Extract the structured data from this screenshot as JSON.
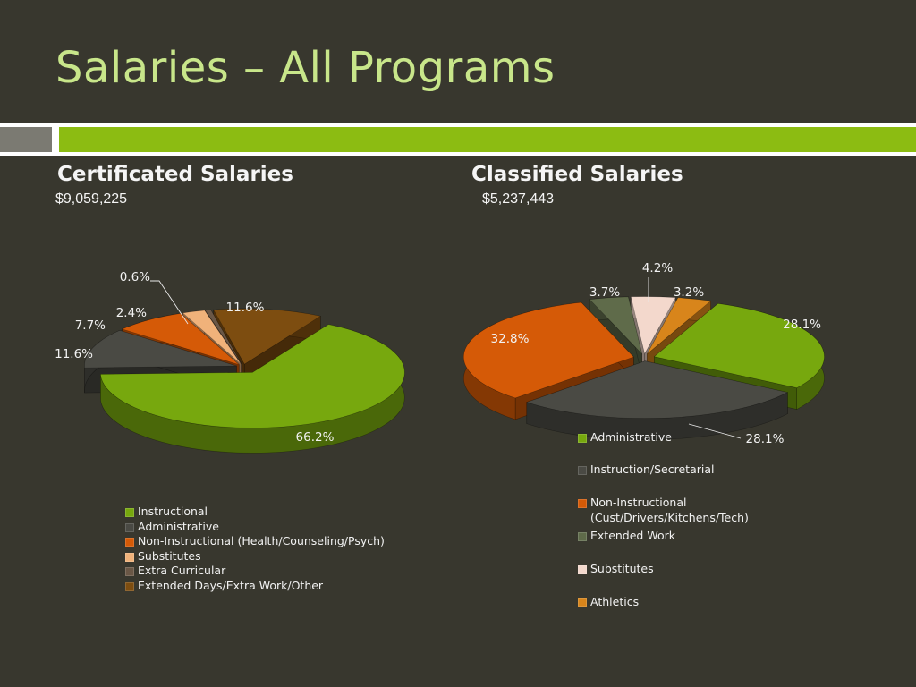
{
  "slide": {
    "title": "Salaries – All Programs"
  },
  "theme": {
    "background": "#38372e",
    "title_color": "#c8e68a",
    "bar_green": "#8cbc12",
    "bar_grey": "#7b7a72"
  },
  "chart_data": [
    {
      "type": "pie",
      "title": "Certificated Salaries",
      "subtitle": "$9,059,225",
      "categories": [
        "Instructional",
        "Administrative",
        "Non-Instructional (Health/Counseling/Psych)",
        "Substitutes",
        "Extra Curricular",
        "Extended Days/Extra Work/Other"
      ],
      "values": [
        66.2,
        11.6,
        7.7,
        2.4,
        0.6,
        11.6
      ],
      "data_labels": [
        "66.2%",
        "11.6%",
        "7.7%",
        "2.4%",
        "0.6%",
        "11.6%"
      ],
      "colors": [
        "#77a80e",
        "#4a4a44",
        "#d55a07",
        "#f0b27a",
        "#6a5746",
        "#7d4d10"
      ],
      "legend_position": "bottom"
    },
    {
      "type": "pie",
      "title": "Classified Salaries",
      "subtitle": "$5,237,443",
      "categories": [
        "Administrative",
        "Instruction/Secretarial",
        "Non-Instructional\n(Cust/Drivers/Kitchens/Tech)",
        "Extended Work",
        "Substitutes",
        "Athletics"
      ],
      "values": [
        28.1,
        28.1,
        32.8,
        3.7,
        4.2,
        3.2
      ],
      "data_labels": [
        "28.1%",
        "28.1%",
        "32.8%",
        "3.7%",
        "4.2%",
        "3.2%"
      ],
      "colors": [
        "#77a80e",
        "#4a4a44",
        "#d55a07",
        "#5f6b4a",
        "#f3d8cc",
        "#d8851b"
      ],
      "legend_position": "bottom-right"
    }
  ]
}
